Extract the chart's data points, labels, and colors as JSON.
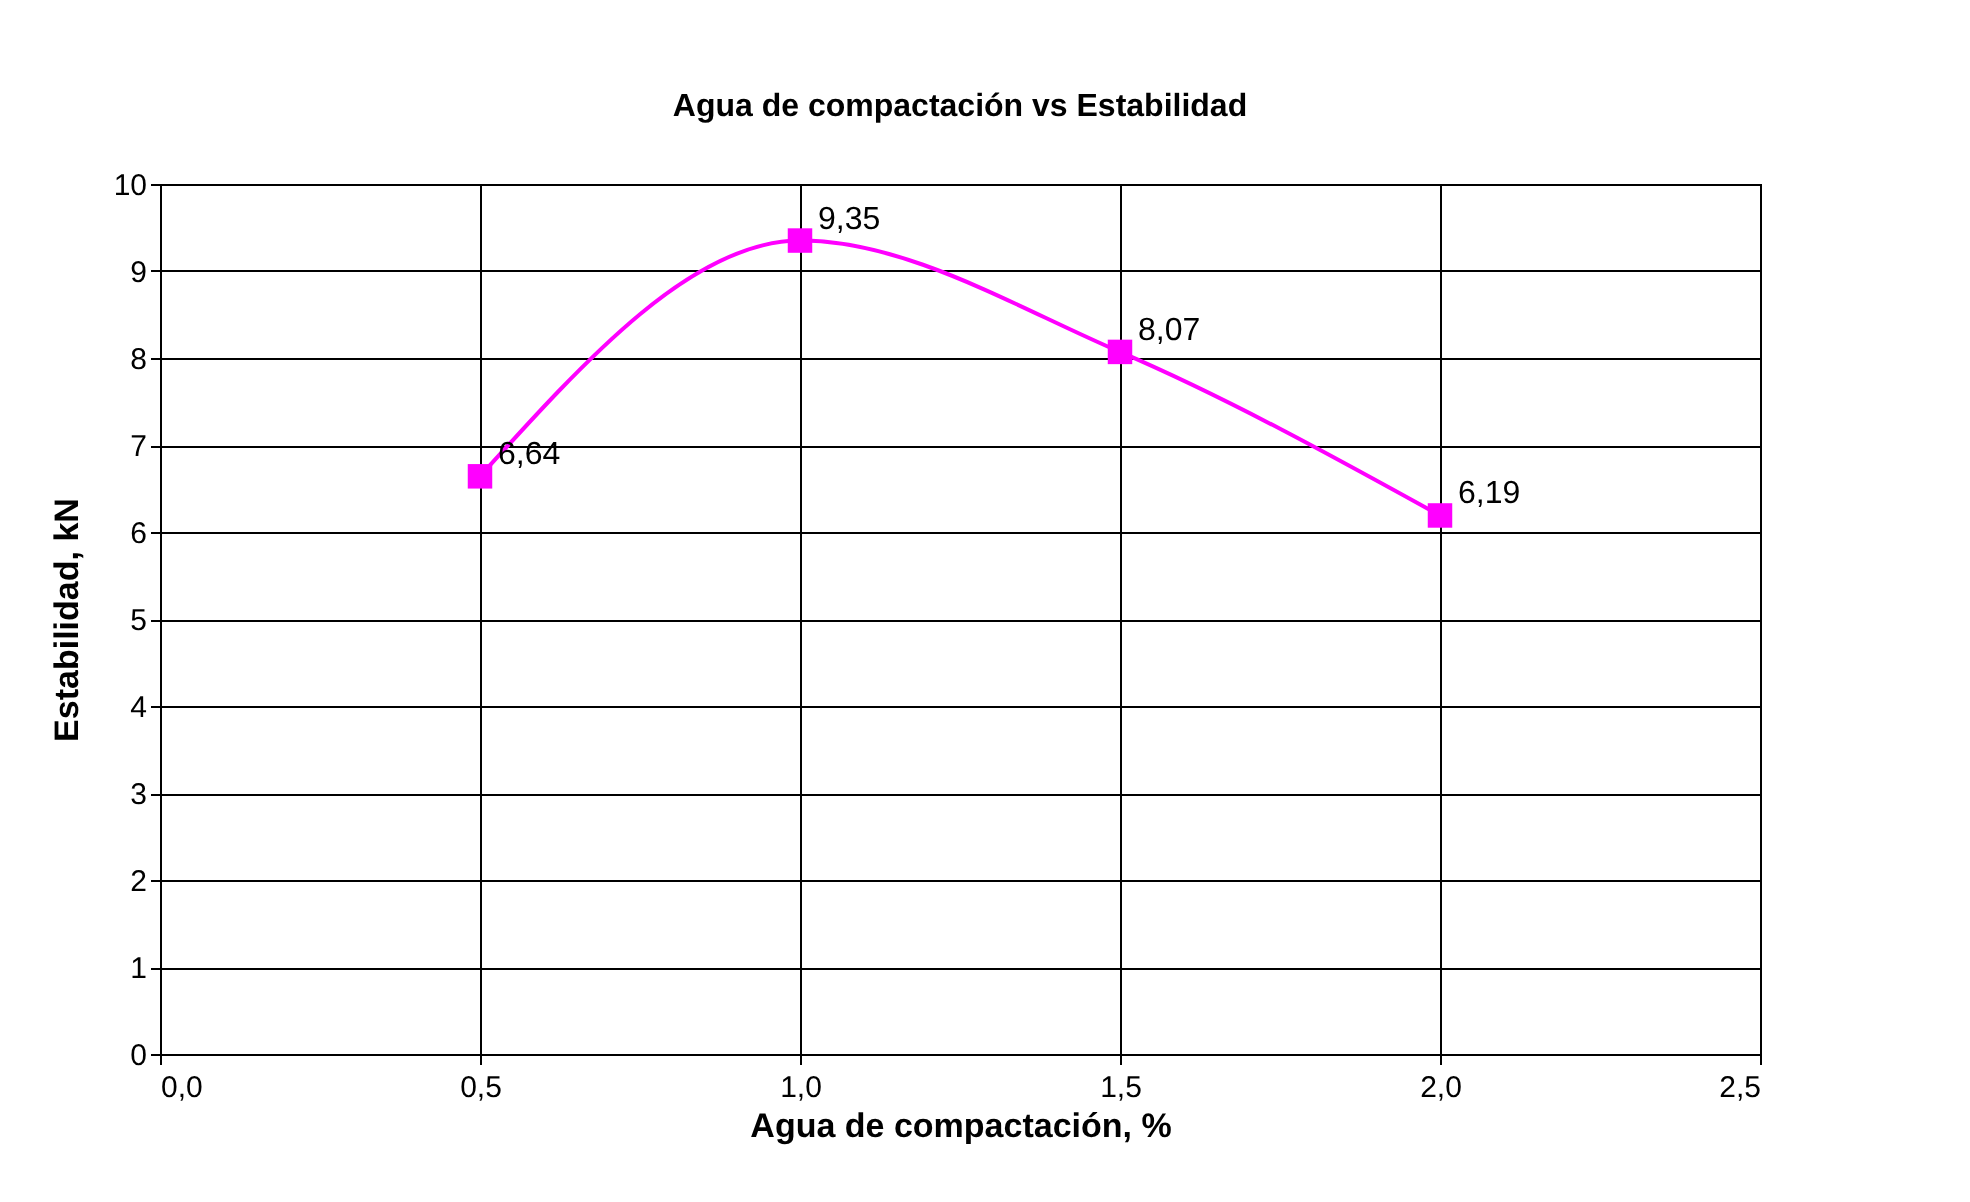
{
  "chart_data": {
    "type": "line",
    "title": "Agua de compactación vs Estabilidad",
    "xlabel": "Agua de compactación, %",
    "ylabel": "Estabilidad, kN",
    "x": [
      0.5,
      1.0,
      1.5,
      2.0
    ],
    "series": [
      {
        "color": "#ff00ff",
        "values": [
          6.64,
          9.35,
          8.07,
          6.19
        ],
        "value_labels": [
          "6,64",
          "9,35",
          "8,07",
          "6,19"
        ]
      }
    ],
    "xlim": [
      0,
      2.5
    ],
    "xticks": [
      {
        "value": 0,
        "label": "0,0"
      },
      {
        "value": 0.5,
        "label": "0,5"
      },
      {
        "value": 1,
        "label": "1,0"
      },
      {
        "value": 1.5,
        "label": "1,5"
      },
      {
        "value": 2,
        "label": "2,0"
      },
      {
        "value": 2.5,
        "label": "2,5"
      }
    ],
    "ylim": [
      0,
      10
    ],
    "yticks": [
      0,
      1,
      2,
      3,
      4,
      5,
      6,
      7,
      8,
      9,
      10
    ],
    "grid": true,
    "marker": "square",
    "line_style": "solid"
  }
}
